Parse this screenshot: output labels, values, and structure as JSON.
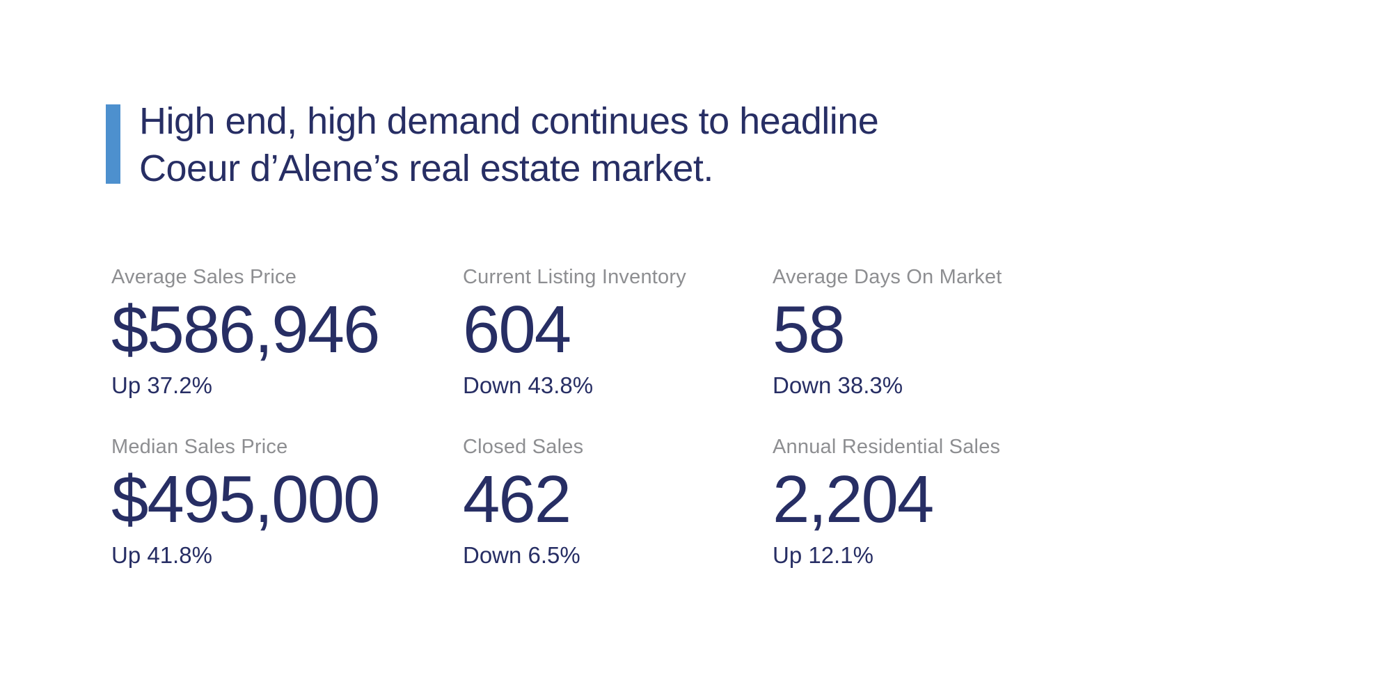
{
  "page": {
    "background_color": "#ffffff"
  },
  "headline": {
    "line1": "High end, high demand continues to headline",
    "line2": "Coeur d’Alene’s real estate market.",
    "accent_color": "#4d90ce",
    "text_color": "#272e64"
  },
  "stats": {
    "label_color": "#8d8e91",
    "value_color": "#272e64",
    "items": [
      {
        "label": "Average Sales Price",
        "value": "$586,946",
        "change": "Up 37.2%"
      },
      {
        "label": "Current Listing Inventory",
        "value": "604",
        "change": "Down 43.8%"
      },
      {
        "label": "Average Days On Market",
        "value": "58",
        "change": "Down 38.3%"
      },
      {
        "label": "Median Sales Price",
        "value": "$495,000",
        "change": "Up 41.8%"
      },
      {
        "label": "Closed Sales",
        "value": "462",
        "change": "Down 6.5%"
      },
      {
        "label": "Annual Residential Sales",
        "value": "2,204",
        "change": "Up 12.1%"
      }
    ]
  }
}
